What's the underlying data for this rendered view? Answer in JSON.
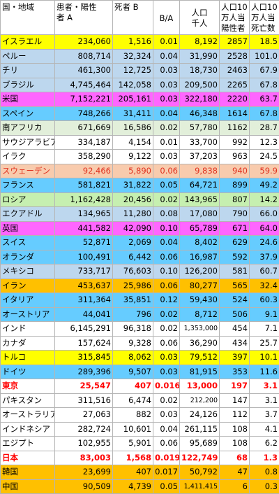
{
  "headers": {
    "country": "国・地域",
    "cases": [
      "患者・陽性",
      "者 A"
    ],
    "deaths": "死者 B",
    "ratio": "B/A",
    "population": [
      "人口",
      "千人"
    ],
    "cases_per_100k": [
      "人口10",
      "万人当",
      "陽性者"
    ],
    "deaths_per_100k": [
      "人口10",
      "万人当",
      "死亡数"
    ]
  },
  "colors": {
    "yellow": "#ffff00",
    "blue": "#bdd7ee",
    "magenta": "#ff66ff",
    "cyan": "#66ccff",
    "green": "#e2efda",
    "white": "#ffffff",
    "salmon": "#f8cbad",
    "lime": "#c6efb0",
    "orange": "#ffc000"
  },
  "rows": [
    {
      "name": "イスラエル",
      "cases": "234,060",
      "deaths": "1,516",
      "ratio": "0.01",
      "pop": "8,192",
      "cp": "2857",
      "dp": "18.5",
      "color": "yellow"
    },
    {
      "name": "ペルー",
      "cases": "808,714",
      "deaths": "32,324",
      "ratio": "0.04",
      "pop": "31,990",
      "cp": "2528",
      "dp": "101.0",
      "color": "blue"
    },
    {
      "name": "チリ",
      "cases": "461,300",
      "deaths": "12,725",
      "ratio": "0.03",
      "pop": "18,730",
      "cp": "2463",
      "dp": "67.9",
      "color": "blue"
    },
    {
      "name": "ブラジル",
      "cases": "4,745,464",
      "deaths": "142,058",
      "ratio": "0.03",
      "pop": "209,500",
      "cp": "2265",
      "dp": "67.8",
      "color": "blue"
    },
    {
      "name": "米国",
      "cases": "7,152,221",
      "deaths": "205,161",
      "ratio": "0.03",
      "pop": "322,180",
      "cp": "2220",
      "dp": "63.7",
      "color": "magenta"
    },
    {
      "name": "スペイン",
      "cases": "748,266",
      "deaths": "31,411",
      "ratio": "0.04",
      "pop": "46,348",
      "cp": "1614",
      "dp": "67.8",
      "color": "cyan"
    },
    {
      "name": "南アフリカ",
      "cases": "671,669",
      "deaths": "16,586",
      "ratio": "0.02",
      "pop": "57,780",
      "cp": "1162",
      "dp": "28.7",
      "color": "green"
    },
    {
      "name": "サウジアラビア",
      "cases": "334,187",
      "deaths": "4,154",
      "ratio": "0.01",
      "pop": "33,700",
      "cp": "992",
      "dp": "12.3",
      "color": "white"
    },
    {
      "name": "イラク",
      "cases": "358,290",
      "deaths": "9,122",
      "ratio": "0.03",
      "pop": "37,203",
      "cp": "963",
      "dp": "24.5",
      "color": "white"
    },
    {
      "name": "スウェーデン",
      "cases": "92,466",
      "deaths": "5,890",
      "ratio": "0.06",
      "pop": "9,838",
      "cp": "940",
      "dp": "59.9",
      "color": "salmon",
      "style": "faintred"
    },
    {
      "name": "フランス",
      "cases": "581,821",
      "deaths": "31,822",
      "ratio": "0.05",
      "pop": "64,721",
      "cp": "899",
      "dp": "49.2",
      "color": "cyan"
    },
    {
      "name": "ロシア",
      "cases": "1,162,428",
      "deaths": "20,456",
      "ratio": "0.02",
      "pop": "143,965",
      "cp": "807",
      "dp": "14.2",
      "color": "lime"
    },
    {
      "name": "エクアドル",
      "cases": "134,965",
      "deaths": "11,280",
      "ratio": "0.08",
      "pop": "17,080",
      "cp": "790",
      "dp": "66.0",
      "color": "blue"
    },
    {
      "name": "英国",
      "cases": "441,582",
      "deaths": "42,090",
      "ratio": "0.10",
      "pop": "65,789",
      "cp": "671",
      "dp": "64.0",
      "color": "magenta"
    },
    {
      "name": "スイス",
      "cases": "52,871",
      "deaths": "2,069",
      "ratio": "0.04",
      "pop": "8,402",
      "cp": "629",
      "dp": "24.6",
      "color": "cyan"
    },
    {
      "name": "オランダ",
      "cases": "100,491",
      "deaths": "6,442",
      "ratio": "0.06",
      "pop": "16,987",
      "cp": "592",
      "dp": "37.9",
      "color": "cyan"
    },
    {
      "name": "メキシコ",
      "cases": "733,717",
      "deaths": "76,603",
      "ratio": "0.10",
      "pop": "126,200",
      "cp": "581",
      "dp": "60.7",
      "color": "blue"
    },
    {
      "name": "イラン",
      "cases": "453,637",
      "deaths": "25,986",
      "ratio": "0.06",
      "pop": "80,277",
      "cp": "565",
      "dp": "32.4",
      "color": "orange"
    },
    {
      "name": "イタリア",
      "cases": "311,364",
      "deaths": "35,851",
      "ratio": "0.12",
      "pop": "59,430",
      "cp": "524",
      "dp": "60.3",
      "color": "cyan"
    },
    {
      "name": "オーストリア",
      "cases": "44,041",
      "deaths": "796",
      "ratio": "0.02",
      "pop": "8,712",
      "cp": "506",
      "dp": "9.1",
      "color": "cyan"
    },
    {
      "name": "インド",
      "cases": "6,145,291",
      "deaths": "96,318",
      "ratio": "0.02",
      "pop": "1,353,000",
      "cp": "454",
      "dp": "7.1",
      "color": "white",
      "smallpop": true
    },
    {
      "name": "カナダ",
      "cases": "157,624",
      "deaths": "9,328",
      "ratio": "0.06",
      "pop": "36,290",
      "cp": "434",
      "dp": "25.7",
      "color": "white"
    },
    {
      "name": "トルコ",
      "cases": "315,845",
      "deaths": "8,062",
      "ratio": "0.03",
      "pop": "79,512",
      "cp": "397",
      "dp": "10.1",
      "color": "yellow"
    },
    {
      "name": "ドイツ",
      "cases": "289,396",
      "deaths": "9,507",
      "ratio": "0.03",
      "pop": "81,915",
      "cp": "353",
      "dp": "11.6",
      "color": "cyan"
    },
    {
      "name": "東京",
      "cases": "25,547",
      "deaths": "407",
      "ratio": "0.016",
      "pop": "13,000",
      "cp": "197",
      "dp": "3.1",
      "color": "white",
      "style": "redbold"
    },
    {
      "name": "パキスタン",
      "cases": "311,516",
      "deaths": "6,474",
      "ratio": "0.02",
      "pop": "212,200",
      "cp": "147",
      "dp": "3.1",
      "color": "white",
      "smallpop": true
    },
    {
      "name": "オーストラリア",
      "cases": "27,063",
      "deaths": "882",
      "ratio": "0.03",
      "pop": "24,126",
      "cp": "112",
      "dp": "3.7",
      "color": "white"
    },
    {
      "name": "インドネシア",
      "cases": "282,724",
      "deaths": "10,601",
      "ratio": "0.04",
      "pop": "261,115",
      "cp": "108",
      "dp": "4.1",
      "color": "white"
    },
    {
      "name": "エジプト",
      "cases": "102,955",
      "deaths": "5,901",
      "ratio": "0.06",
      "pop": "95,689",
      "cp": "108",
      "dp": "6.2",
      "color": "white"
    },
    {
      "name": "日本",
      "cases": "83,003",
      "deaths": "1,568",
      "ratio": "0.019",
      "pop": "122,749",
      "cp": "68",
      "dp": "1.3",
      "color": "white",
      "style": "redbold"
    },
    {
      "name": "韓国",
      "cases": "23,699",
      "deaths": "407",
      "ratio": "0.017",
      "pop": "50,792",
      "cp": "47",
      "dp": "0.8",
      "color": "orange"
    },
    {
      "name": "中国",
      "cases": "90,509",
      "deaths": "4,739",
      "ratio": "0.05",
      "pop": "1,411,415",
      "cp": "6",
      "dp": "0.3",
      "color": "orange",
      "smallpop": true
    }
  ]
}
